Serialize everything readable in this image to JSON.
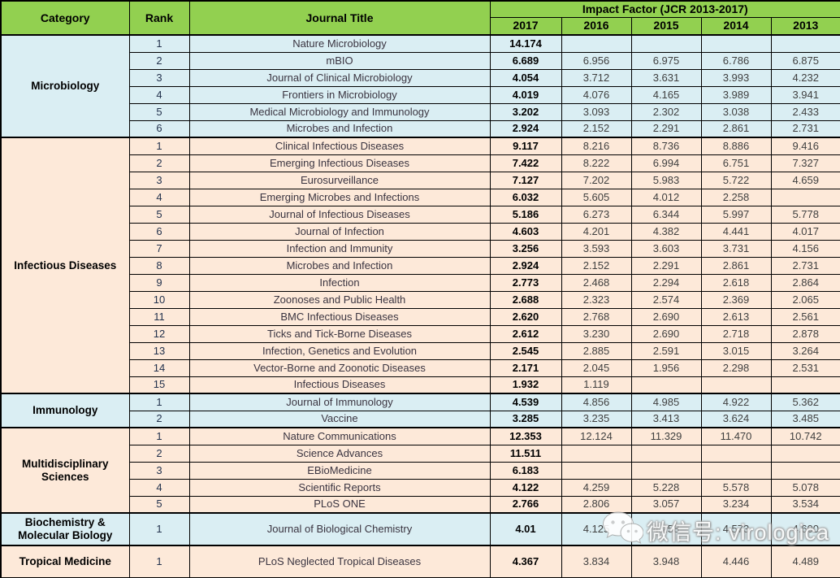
{
  "table": {
    "headers": {
      "category": "Category",
      "rank": "Rank",
      "journal": "Journal Title",
      "impact_factor_group": "Impact Factor (JCR 2013-2017)",
      "years": [
        "2017",
        "2016",
        "2015",
        "2014",
        "2013"
      ]
    },
    "sections": [
      {
        "category": "Microbiology",
        "theme": "blue",
        "tall": false,
        "rows": [
          {
            "rank": "1",
            "journal": "Nature Microbiology",
            "if": [
              "14.174",
              "",
              "",
              "",
              ""
            ]
          },
          {
            "rank": "2",
            "journal": "mBIO",
            "if": [
              "6.689",
              "6.956",
              "6.975",
              "6.786",
              "6.875"
            ]
          },
          {
            "rank": "3",
            "journal": "Journal of Clinical Microbiology",
            "if": [
              "4.054",
              "3.712",
              "3.631",
              "3.993",
              "4.232"
            ]
          },
          {
            "rank": "4",
            "journal": "Frontiers in Microbiology",
            "if": [
              "4.019",
              "4.076",
              "4.165",
              "3.989",
              "3.941"
            ]
          },
          {
            "rank": "5",
            "journal": "Medical Microbiology and Immunology",
            "if": [
              "3.202",
              "3.093",
              "2.302",
              "3.038",
              "2.433"
            ]
          },
          {
            "rank": "6",
            "journal": "Microbes and Infection",
            "if": [
              "2.924",
              "2.152",
              "2.291",
              "2.861",
              "2.731"
            ]
          }
        ]
      },
      {
        "category": "Infectious Diseases",
        "theme": "peach",
        "tall": false,
        "rows": [
          {
            "rank": "1",
            "journal": "Clinical Infectious Diseases",
            "if": [
              "9.117",
              "8.216",
              "8.736",
              "8.886",
              "9.416"
            ]
          },
          {
            "rank": "2",
            "journal": "Emerging Infectious Diseases",
            "if": [
              "7.422",
              "8.222",
              "6.994",
              "6.751",
              "7.327"
            ]
          },
          {
            "rank": "3",
            "journal": "Eurosurveillance",
            "if": [
              "7.127",
              "7.202",
              "5.983",
              "5.722",
              "4.659"
            ]
          },
          {
            "rank": "4",
            "journal": "Emerging Microbes and Infections",
            "if": [
              "6.032",
              "5.605",
              "4.012",
              "2.258",
              ""
            ]
          },
          {
            "rank": "5",
            "journal": "Journal of Infectious Diseases",
            "if": [
              "5.186",
              "6.273",
              "6.344",
              "5.997",
              "5.778"
            ]
          },
          {
            "rank": "6",
            "journal": "Journal of Infection",
            "if": [
              "4.603",
              "4.201",
              "4.382",
              "4.441",
              "4.017"
            ]
          },
          {
            "rank": "7",
            "journal": "Infection and Immunity",
            "if": [
              "3.256",
              "3.593",
              "3.603",
              "3.731",
              "4.156"
            ]
          },
          {
            "rank": "8",
            "journal": "Microbes and Infection",
            "if": [
              "2.924",
              "2.152",
              "2.291",
              "2.861",
              "2.731"
            ]
          },
          {
            "rank": "9",
            "journal": "Infection",
            "if": [
              "2.773",
              "2.468",
              "2.294",
              "2.618",
              "2.864"
            ]
          },
          {
            "rank": "10",
            "journal": "Zoonoses and Public Health",
            "if": [
              "2.688",
              "2.323",
              "2.574",
              "2.369",
              "2.065"
            ]
          },
          {
            "rank": "11",
            "journal": "BMC Infectious Diseases",
            "if": [
              "2.620",
              "2.768",
              "2.690",
              "2.613",
              "2.561"
            ]
          },
          {
            "rank": "12",
            "journal": "Ticks and Tick-Borne Diseases",
            "if": [
              "2.612",
              "3.230",
              "2.690",
              "2.718",
              "2.878"
            ]
          },
          {
            "rank": "13",
            "journal": "Infection, Genetics and Evolution",
            "if": [
              "2.545",
              "2.885",
              "2.591",
              "3.015",
              "3.264"
            ]
          },
          {
            "rank": "14",
            "journal": "Vector-Borne and Zoonotic Diseases",
            "if": [
              "2.171",
              "2.045",
              "1.956",
              "2.298",
              "2.531"
            ]
          },
          {
            "rank": "15",
            "journal": "Infectious Diseases",
            "if": [
              "1.932",
              "1.119",
              "",
              "",
              ""
            ]
          }
        ]
      },
      {
        "category": "Immunology",
        "theme": "blue",
        "tall": false,
        "rows": [
          {
            "rank": "1",
            "journal": "Journal of Immunology",
            "if": [
              "4.539",
              "4.856",
              "4.985",
              "4.922",
              "5.362"
            ]
          },
          {
            "rank": "2",
            "journal": "Vaccine",
            "if": [
              "3.285",
              "3.235",
              "3.413",
              "3.624",
              "3.485"
            ]
          }
        ]
      },
      {
        "category": "Multidisciplinary Sciences",
        "theme": "peach",
        "tall": false,
        "rows": [
          {
            "rank": "1",
            "journal": "Nature Communications",
            "if": [
              "12.353",
              "12.124",
              "11.329",
              "11.470",
              "10.742"
            ]
          },
          {
            "rank": "2",
            "journal": "Science Advances",
            "if": [
              "11.511",
              "",
              "",
              "",
              ""
            ]
          },
          {
            "rank": "3",
            "journal": "EBioMedicine",
            "if": [
              "6.183",
              "",
              "",
              "",
              ""
            ]
          },
          {
            "rank": "4",
            "journal": "Scientific Reports",
            "if": [
              "4.122",
              "4.259",
              "5.228",
              "5.578",
              "5.078"
            ]
          },
          {
            "rank": "5",
            "journal": "PLoS ONE",
            "if": [
              "2.766",
              "2.806",
              "3.057",
              "3.234",
              "3.534"
            ]
          }
        ]
      },
      {
        "category": "Biochemistry & Molecular Biology",
        "theme": "blue",
        "tall": true,
        "rows": [
          {
            "rank": "1",
            "journal": "Journal of Biological Chemistry",
            "if": [
              "4.01",
              "4.125",
              "4.258",
              "4.573",
              "4.600"
            ]
          }
        ]
      },
      {
        "category": "Tropical Medicine",
        "theme": "peach",
        "tall": true,
        "rows": [
          {
            "rank": "1",
            "journal": "PLoS Neglected Tropical Diseases",
            "if": [
              "4.367",
              "3.834",
              "3.948",
              "4.446",
              "4.489"
            ]
          }
        ]
      }
    ]
  },
  "watermark": {
    "icon": "wechat-icon",
    "text": "微信号: virologica"
  },
  "colors": {
    "header_green": "#92d050",
    "section_blue": "#daeef3",
    "section_peach": "#fde9d9",
    "border": "#000000",
    "value_2017": "#000000",
    "value_other": "#404040"
  }
}
